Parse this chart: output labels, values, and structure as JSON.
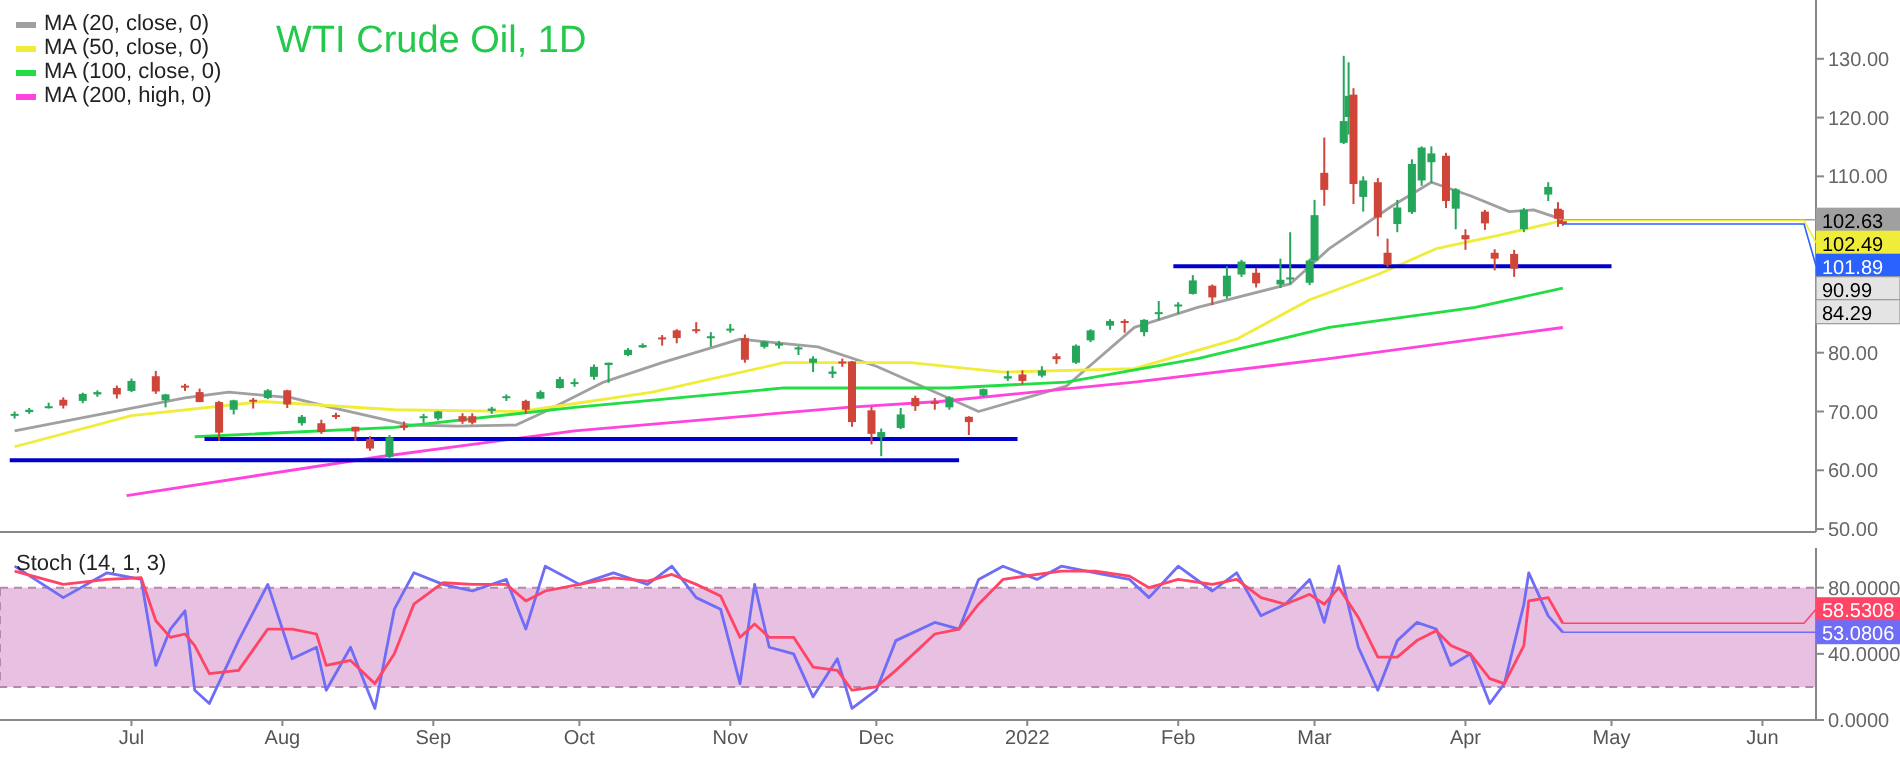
{
  "chart_data": [
    {
      "type": "candlestick",
      "title": "WTI Crude Oil, 1D",
      "legend": "top left",
      "tick_labels": "y",
      "xlim": [
        "2021-06-04",
        "2022-06-12"
      ],
      "ylim": [
        49.5,
        140
      ],
      "yticks": [
        {
          "value": 50,
          "label": "50.00"
        },
        {
          "value": 60,
          "label": "60.00"
        },
        {
          "value": 70,
          "label": "70.00"
        },
        {
          "value": 80,
          "label": "80.00"
        },
        {
          "value": 110,
          "label": "110.00"
        },
        {
          "value": 120,
          "label": "120.00"
        },
        {
          "value": 130,
          "label": "130.00"
        }
      ],
      "x": [
        "2021-06-07",
        "2021-06-10",
        "2021-06-14",
        "2021-06-17",
        "2021-06-21",
        "2021-06-24",
        "2021-06-28",
        "2021-07-01",
        "2021-07-06",
        "2021-07-08",
        "2021-07-12",
        "2021-07-15",
        "2021-07-19",
        "2021-07-22",
        "2021-07-26",
        "2021-07-29",
        "2021-08-02",
        "2021-08-05",
        "2021-08-09",
        "2021-08-12",
        "2021-08-16",
        "2021-08-19",
        "2021-08-23",
        "2021-08-26",
        "2021-08-30",
        "2021-09-02",
        "2021-09-07",
        "2021-09-09",
        "2021-09-13",
        "2021-09-16",
        "2021-09-20",
        "2021-09-23",
        "2021-09-27",
        "2021-09-30",
        "2021-10-04",
        "2021-10-07",
        "2021-10-11",
        "2021-10-14",
        "2021-10-18",
        "2021-10-21",
        "2021-10-25",
        "2021-10-28",
        "2021-11-01",
        "2021-11-04",
        "2021-11-08",
        "2021-11-11",
        "2021-11-15",
        "2021-11-18",
        "2021-11-22",
        "2021-11-24",
        "2021-11-26",
        "2021-11-30",
        "2021-12-02",
        "2021-12-06",
        "2021-12-09",
        "2021-12-13",
        "2021-12-16",
        "2021-12-20",
        "2021-12-23",
        "2021-12-28",
        "2021-12-31",
        "2022-01-04",
        "2022-01-07",
        "2022-01-11",
        "2022-01-14",
        "2022-01-18",
        "2022-01-21",
        "2022-01-25",
        "2022-01-28",
        "2022-02-01",
        "2022-02-04",
        "2022-02-08",
        "2022-02-11",
        "2022-02-14",
        "2022-02-17",
        "2022-02-22",
        "2022-02-24",
        "2022-02-28",
        "2022-03-01",
        "2022-03-03",
        "2022-03-07",
        "2022-03-08",
        "2022-03-09",
        "2022-03-11",
        "2022-03-14",
        "2022-03-16",
        "2022-03-18",
        "2022-03-21",
        "2022-03-23",
        "2022-03-25",
        "2022-03-28",
        "2022-03-30",
        "2022-04-01",
        "2022-04-05",
        "2022-04-07",
        "2022-04-11",
        "2022-04-13",
        "2022-04-18",
        "2022-04-20",
        "2022-04-21"
      ],
      "ohlc": [
        [
          69.3,
          70.0,
          68.8,
          69.6
        ],
        [
          69.9,
          70.6,
          69.6,
          70.3
        ],
        [
          70.9,
          71.5,
          70.5,
          70.9
        ],
        [
          72.0,
          72.4,
          70.5,
          71.0
        ],
        [
          71.8,
          73.2,
          71.4,
          73.0
        ],
        [
          72.9,
          73.6,
          72.5,
          73.3
        ],
        [
          74.0,
          74.4,
          72.2,
          72.9
        ],
        [
          73.5,
          75.6,
          73.3,
          75.2
        ],
        [
          76.0,
          76.9,
          73.0,
          73.4
        ],
        [
          71.9,
          73.0,
          70.7,
          72.9
        ],
        [
          74.4,
          74.7,
          73.5,
          74.1
        ],
        [
          73.3,
          73.9,
          71.6,
          71.6
        ],
        [
          71.6,
          71.8,
          65.0,
          66.4
        ],
        [
          70.3,
          72.0,
          69.5,
          71.9
        ],
        [
          72.0,
          72.3,
          70.5,
          71.9
        ],
        [
          72.3,
          73.8,
          72.1,
          73.6
        ],
        [
          73.6,
          73.7,
          70.6,
          71.2
        ],
        [
          68.0,
          69.4,
          67.6,
          69.1
        ],
        [
          68.0,
          68.6,
          66.2,
          66.5
        ],
        [
          69.4,
          69.8,
          68.7,
          69.1
        ],
        [
          67.4,
          67.4,
          65.0,
          66.6
        ],
        [
          65.3,
          65.8,
          63.3,
          63.7
        ],
        [
          62.3,
          66.0,
          62.0,
          65.6
        ],
        [
          67.6,
          68.3,
          66.8,
          67.4
        ],
        [
          68.9,
          69.6,
          68.1,
          69.2
        ],
        [
          68.8,
          70.1,
          68.5,
          70.0
        ],
        [
          69.2,
          69.7,
          67.9,
          68.3
        ],
        [
          69.2,
          69.7,
          67.8,
          68.1
        ],
        [
          70.1,
          70.8,
          69.6,
          70.5
        ],
        [
          72.5,
          72.9,
          71.8,
          72.6
        ],
        [
          71.8,
          72.0,
          69.6,
          70.3
        ],
        [
          72.2,
          73.6,
          72.1,
          73.3
        ],
        [
          74.0,
          75.9,
          73.9,
          75.5
        ],
        [
          74.8,
          75.6,
          74.2,
          75.0
        ],
        [
          75.9,
          78.0,
          75.4,
          77.6
        ],
        [
          77.9,
          78.3,
          74.9,
          78.3
        ],
        [
          79.6,
          80.8,
          79.4,
          80.5
        ],
        [
          80.9,
          81.6,
          80.8,
          81.3
        ],
        [
          82.6,
          83.0,
          81.2,
          82.4
        ],
        [
          83.8,
          84.0,
          81.6,
          82.5
        ],
        [
          84.0,
          85.2,
          83.3,
          83.8
        ],
        [
          82.6,
          83.5,
          81.0,
          82.8
        ],
        [
          84.0,
          84.9,
          83.4,
          84.1
        ],
        [
          82.5,
          83.1,
          78.3,
          78.8
        ],
        [
          81.0,
          82.0,
          80.7,
          81.9
        ],
        [
          81.2,
          82.0,
          80.7,
          81.6
        ],
        [
          80.8,
          81.1,
          79.6,
          80.9
        ],
        [
          78.3,
          79.4,
          76.7,
          79.0
        ],
        [
          76.4,
          77.7,
          75.7,
          76.8
        ],
        [
          78.5,
          79.0,
          77.6,
          78.4
        ],
        [
          78.5,
          78.6,
          67.4,
          68.2
        ],
        [
          70.2,
          70.8,
          64.4,
          66.2
        ],
        [
          65.6,
          67.1,
          62.4,
          66.5
        ],
        [
          67.2,
          70.6,
          67.0,
          69.5
        ],
        [
          72.3,
          72.7,
          70.1,
          70.9
        ],
        [
          71.7,
          72.3,
          70.3,
          71.3
        ],
        [
          70.7,
          72.6,
          70.3,
          72.4
        ],
        [
          69.1,
          69.2,
          66.0,
          68.2
        ],
        [
          72.7,
          73.9,
          72.5,
          73.8
        ],
        [
          75.6,
          76.9,
          75.2,
          76.0
        ],
        [
          76.3,
          77.0,
          74.6,
          75.2
        ],
        [
          76.1,
          77.7,
          75.8,
          77.0
        ],
        [
          79.4,
          79.9,
          78.1,
          78.9
        ],
        [
          78.3,
          81.4,
          78.1,
          81.2
        ],
        [
          82.1,
          84.0,
          81.8,
          83.8
        ],
        [
          84.6,
          85.7,
          83.9,
          85.4
        ],
        [
          85.4,
          85.7,
          83.4,
          85.1
        ],
        [
          83.5,
          85.7,
          82.8,
          85.6
        ],
        [
          86.7,
          88.8,
          85.5,
          86.9
        ],
        [
          88.0,
          88.6,
          86.6,
          88.2
        ],
        [
          90.0,
          93.2,
          89.9,
          92.3
        ],
        [
          91.4,
          91.6,
          88.1,
          89.4
        ],
        [
          89.6,
          94.7,
          89.2,
          93.1
        ],
        [
          93.3,
          95.8,
          92.9,
          95.5
        ],
        [
          93.6,
          94.4,
          91.1,
          91.8
        ],
        [
          91.6,
          96.0,
          91.0,
          92.4
        ],
        [
          92.8,
          100.5,
          91.6,
          92.8
        ],
        [
          91.9,
          96.0,
          91.5,
          95.7
        ],
        [
          95.7,
          106.0,
          95.6,
          103.4
        ],
        [
          110.6,
          116.6,
          105.0,
          107.7
        ],
        [
          115.7,
          130.5,
          115.5,
          119.4
        ],
        [
          120.1,
          129.4,
          117.1,
          123.7
        ],
        [
          123.9,
          125.0,
          105.3,
          108.7
        ],
        [
          106.5,
          110.0,
          104.0,
          109.3
        ],
        [
          109.0,
          109.7,
          99.8,
          103.0
        ],
        [
          97.0,
          99.4,
          94.6,
          95.0
        ],
        [
          101.9,
          106.0,
          100.5,
          104.7
        ],
        [
          103.9,
          112.9,
          103.6,
          112.1
        ],
        [
          109.3,
          115.1,
          108.4,
          114.9
        ],
        [
          112.4,
          115.1,
          108.9,
          113.9
        ],
        [
          113.5,
          114.0,
          104.6,
          105.8
        ],
        [
          104.5,
          108.0,
          101.0,
          107.8
        ],
        [
          100.0,
          101.0,
          97.5,
          99.3
        ],
        [
          104.0,
          104.3,
          100.9,
          102.0
        ],
        [
          97.0,
          97.6,
          94.0,
          96.0
        ],
        [
          96.8,
          97.5,
          92.9,
          94.3
        ],
        [
          101.0,
          104.6,
          100.5,
          104.3
        ],
        [
          106.9,
          109.0,
          105.8,
          108.2
        ],
        [
          104.5,
          105.6,
          101.4,
          102.8
        ],
        [
          102.6,
          104.3,
          101.6,
          101.89
        ]
      ],
      "annotations": [
        {
          "text": "102.63",
          "x": "2022-04-21",
          "y": 102.63
        },
        {
          "text": "102.49",
          "x": "2022-04-21",
          "y": 102.49
        },
        {
          "text": "101.89",
          "x": "2022-04-21",
          "y": 101.89
        },
        "90.99",
        "84.29"
      ],
      "series": [
        {
          "type": "line",
          "name": "MA (20, close, 0)",
          "color": "#a0a0a0",
          "x": [
            "2021-06-07",
            "2021-07-12",
            "2021-07-21",
            "2021-08-03",
            "2021-08-11",
            "2021-08-27",
            "2021-09-06",
            "2021-09-18",
            "2021-09-24",
            "2021-10-06",
            "2021-10-18",
            "2021-11-03",
            "2021-11-19",
            "2021-12-01",
            "2021-12-13",
            "2021-12-22",
            "2022-01-09",
            "2022-01-23",
            "2022-02-05",
            "2022-02-24",
            "2022-03-04",
            "2022-03-17",
            "2022-03-25",
            "2022-04-02",
            "2022-04-10",
            "2022-04-15",
            "2022-04-21"
          ],
          "values": [
            66.7,
            72.3,
            73.3,
            72.3,
            70.7,
            67.7,
            67.5,
            67.7,
            70.0,
            75.0,
            78.3,
            82.3,
            81.0,
            77.7,
            73.3,
            70.0,
            74.3,
            84.3,
            87.7,
            91.7,
            97.7,
            105.0,
            109.0,
            106.7,
            104.0,
            104.3,
            102.63
          ]
        },
        {
          "type": "line",
          "name": "MA (50, close, 0)",
          "color": "#f0ec3a",
          "x": [
            "2021-06-07",
            "2021-07-01",
            "2021-07-28",
            "2021-08-24",
            "2021-09-19",
            "2021-10-16",
            "2021-11-12",
            "2021-12-08",
            "2021-12-27",
            "2022-01-23",
            "2022-02-13",
            "2022-02-28",
            "2022-03-14",
            "2022-03-26",
            "2022-04-08",
            "2022-04-21"
          ],
          "values": [
            64.0,
            69.3,
            71.7,
            70.3,
            70.0,
            73.3,
            78.3,
            78.3,
            76.7,
            77.3,
            82.3,
            89.0,
            93.3,
            97.7,
            100.0,
            102.49
          ]
        },
        {
          "type": "line",
          "name": "MA (100, close, 0)",
          "color": "#22dd44",
          "x": [
            "2021-07-14",
            "2021-08-24",
            "2021-09-30",
            "2021-11-12",
            "2021-12-16",
            "2022-01-09",
            "2022-02-05",
            "2022-03-04",
            "2022-04-03",
            "2022-04-21"
          ],
          "values": [
            65.7,
            67.3,
            70.7,
            74.0,
            74.0,
            75.0,
            79.0,
            84.3,
            87.7,
            90.99
          ]
        },
        {
          "type": "line",
          "name": "MA (200, high, 0)",
          "color": "#ff44dd",
          "x": [
            "2021-06-30",
            "2021-08-21",
            "2021-09-30",
            "2021-11-25",
            "2021-12-14",
            "2022-01-23",
            "2022-03-04",
            "2022-04-21"
          ],
          "values": [
            55.7,
            62.3,
            66.7,
            70.7,
            71.7,
            75.0,
            79.0,
            84.29
          ]
        },
        {
          "type": "line",
          "color": "#0000cc",
          "x": [
            "2021-06-06",
            "2021-12-18"
          ],
          "values": [
            61.7,
            61.7
          ]
        },
        {
          "type": "line",
          "color": "#0000cc",
          "x": [
            "2021-07-16",
            "2021-12-30"
          ],
          "values": [
            65.3,
            65.3
          ]
        },
        {
          "type": "line",
          "color": "#0000cc",
          "x": [
            "2022-01-31",
            "2022-05-01"
          ],
          "values": [
            94.7,
            94.7
          ]
        }
      ]
    },
    {
      "type": "line",
      "title": "Stoch (14, 1, 3)",
      "xlim": [
        "2021-06-04",
        "2022-06-12"
      ],
      "xticks": [
        {
          "value": "2021-07-01",
          "label": "Jul"
        },
        {
          "value": "2021-08-01",
          "label": "Aug"
        },
        {
          "value": "2021-09-01",
          "label": "Sep"
        },
        {
          "value": "2021-10-01",
          "label": "Oct"
        },
        {
          "value": "2021-11-01",
          "label": "Nov"
        },
        {
          "value": "2021-12-01",
          "label": "Dec"
        },
        {
          "value": "2022-01-01",
          "label": "2022"
        },
        {
          "value": "2022-02-01",
          "label": "Feb"
        },
        {
          "value": "2022-03-01",
          "label": "Mar"
        },
        {
          "value": "2022-04-01",
          "label": "Apr"
        },
        {
          "value": "2022-05-01",
          "label": "May"
        },
        {
          "value": "2022-06-01",
          "label": "Jun"
        }
      ],
      "ylim": [
        0,
        104
      ],
      "yticks": [
        {
          "value": 0,
          "label": "0.0000"
        },
        {
          "value": 40,
          "label": "40.0000"
        },
        {
          "value": 80,
          "label": "80.0000"
        }
      ],
      "bands": [
        {
          "axis": "y",
          "from": 20,
          "to": 80,
          "color": "#e8c0e2"
        }
      ],
      "annotations": [
        {
          "text": "58.5308",
          "x": "2022-04-21",
          "y": 58.5308
        },
        {
          "text": "53.0806",
          "x": "2022-04-21",
          "y": 53.0806
        }
      ],
      "x": [
        "2021-06-07",
        "2021-06-17",
        "2021-06-26",
        "2021-07-03",
        "2021-07-06",
        "2021-07-09",
        "2021-07-12",
        "2021-07-14",
        "2021-07-17",
        "2021-07-23",
        "2021-07-29",
        "2021-08-03",
        "2021-08-08",
        "2021-08-10",
        "2021-08-15",
        "2021-08-20",
        "2021-08-24",
        "2021-08-28",
        "2021-09-03",
        "2021-09-09",
        "2021-09-16",
        "2021-09-20",
        "2021-09-24",
        "2021-10-01",
        "2021-10-08",
        "2021-10-15",
        "2021-10-20",
        "2021-10-25",
        "2021-10-30",
        "2021-11-03",
        "2021-11-06",
        "2021-11-09",
        "2021-11-14",
        "2021-11-18",
        "2021-11-23",
        "2021-11-26",
        "2021-12-01",
        "2021-12-05",
        "2021-12-13",
        "2021-12-18",
        "2021-12-22",
        "2021-12-27",
        "2022-01-03",
        "2022-01-08",
        "2022-01-15",
        "2022-01-22",
        "2022-01-26",
        "2022-02-01",
        "2022-02-08",
        "2022-02-13",
        "2022-02-18",
        "2022-02-23",
        "2022-02-28",
        "2022-03-03",
        "2022-03-06",
        "2022-03-10",
        "2022-03-14",
        "2022-03-18",
        "2022-03-22",
        "2022-03-26",
        "2022-03-29",
        "2022-04-02",
        "2022-04-06",
        "2022-04-09",
        "2022-04-13",
        "2022-04-14",
        "2022-04-18",
        "2022-04-21"
      ],
      "series": [
        {
          "color": "#6f6cf5",
          "values": [
            93,
            74,
            89,
            85,
            33,
            55,
            66,
            18,
            10,
            48,
            82,
            37,
            44,
            18,
            44,
            7,
            67,
            89,
            82,
            78,
            85,
            55,
            93,
            82,
            89,
            82,
            93,
            74,
            67,
            22,
            82,
            44,
            40,
            14,
            37,
            7,
            18,
            48,
            59,
            55,
            85,
            93,
            85,
            93,
            89,
            85,
            74,
            93,
            78,
            89,
            63,
            70,
            85,
            59,
            93,
            44,
            18,
            48,
            59,
            55,
            33,
            40,
            10,
            22,
            70,
            89,
            63,
            53.0806
          ]
        },
        {
          "color": "#ff4466",
          "values": [
            90,
            82,
            85,
            86,
            60,
            50,
            52,
            45,
            28,
            30,
            55,
            55,
            52,
            33,
            36,
            22,
            40,
            70,
            83,
            82,
            82,
            72,
            78,
            82,
            86,
            84,
            88,
            82,
            75,
            50,
            58,
            50,
            50,
            32,
            30,
            18,
            20,
            30,
            52,
            55,
            70,
            85,
            88,
            90,
            90,
            87,
            80,
            85,
            82,
            85,
            74,
            70,
            76,
            70,
            80,
            62,
            38,
            38,
            48,
            54,
            45,
            40,
            25,
            22,
            45,
            72,
            74,
            58.5308
          ]
        }
      ]
    }
  ]
}
